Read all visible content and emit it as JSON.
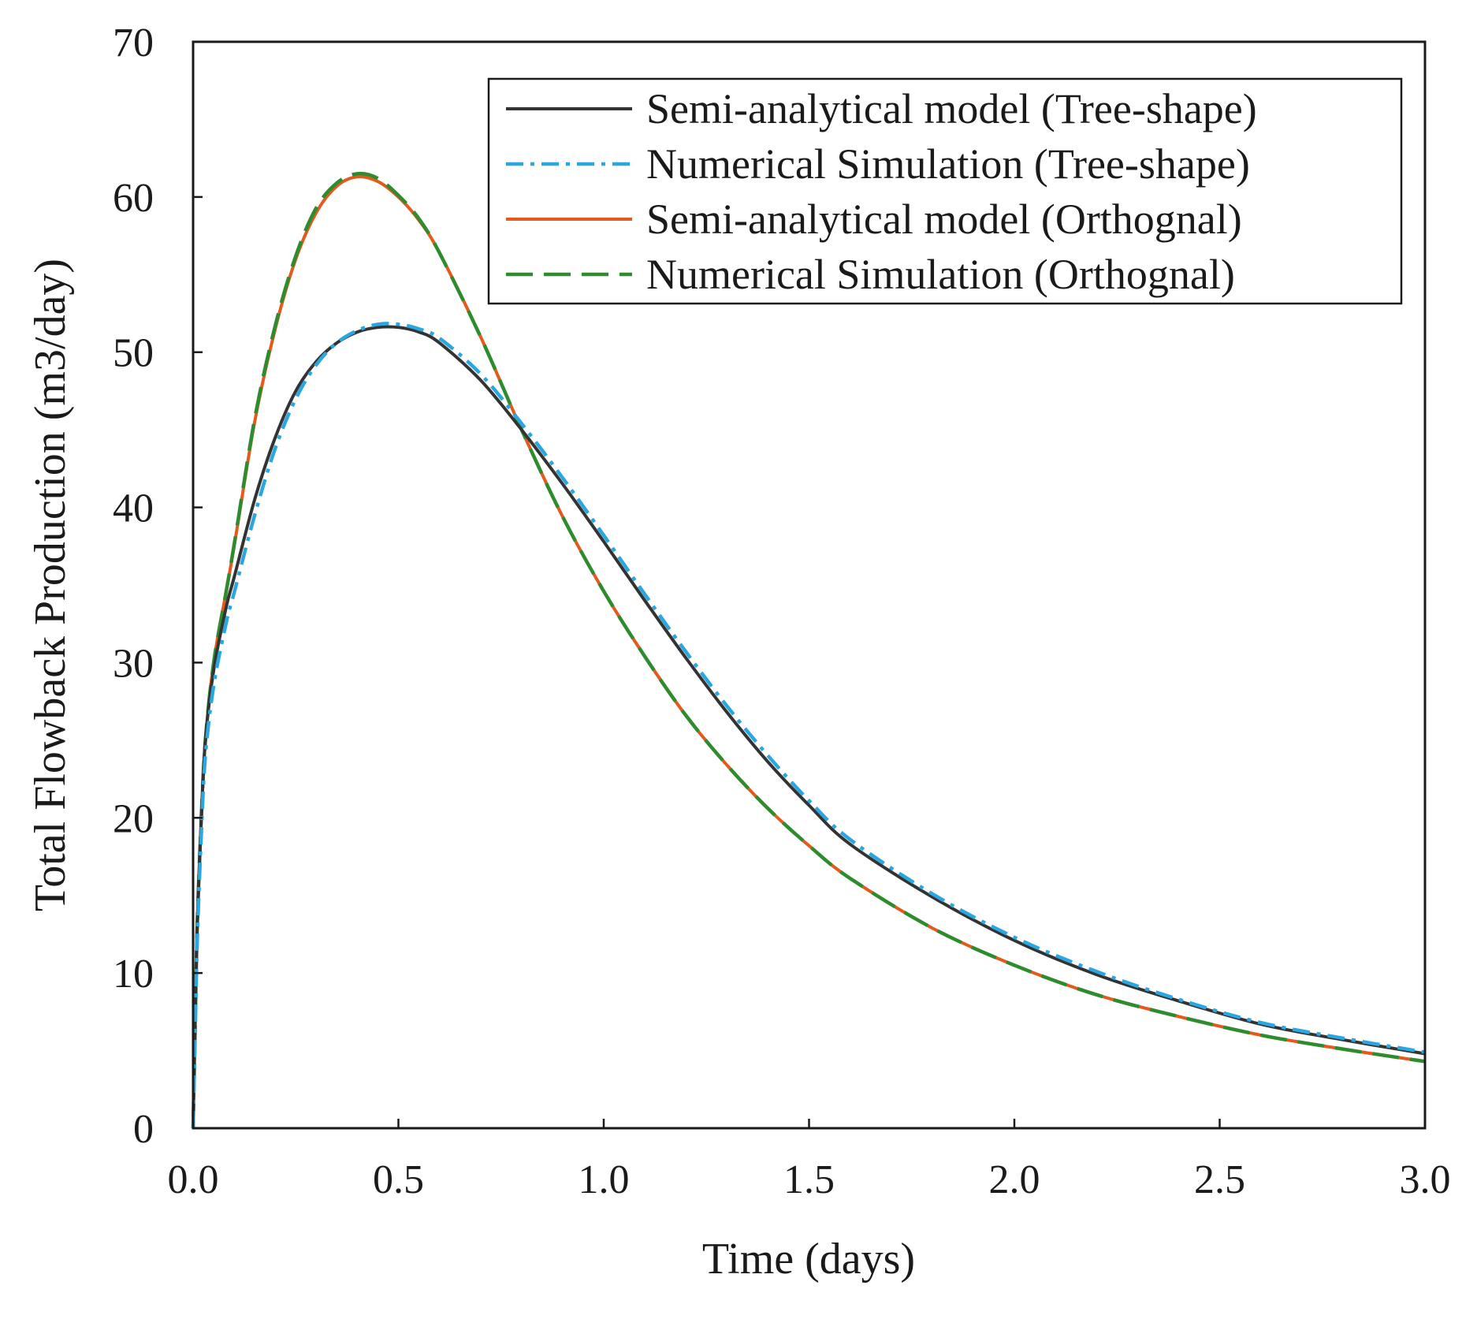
{
  "chart_data": {
    "type": "line",
    "title": "",
    "xlabel": "Time (days)",
    "ylabel": "Total Flowback Production (m3/day)",
    "xlim": [
      0,
      3
    ],
    "ylim": [
      0,
      70
    ],
    "x_ticks": [
      0,
      0.5,
      1,
      1.5,
      2,
      2.5,
      3
    ],
    "x_tick_labels": [
      "0.0",
      "0.5",
      "1.0",
      "1.5",
      "2.0",
      "2.5",
      "3.0"
    ],
    "y_ticks": [
      0,
      10,
      20,
      30,
      40,
      50,
      60,
      70
    ],
    "y_tick_labels": [
      "0",
      "10",
      "20",
      "30",
      "40",
      "50",
      "60",
      "70"
    ],
    "grid": false,
    "legend_position": "top-right",
    "series": [
      {
        "name": "Semi-analytical model (Tree-shape)",
        "color": "#333333",
        "dash": "solid",
        "x": [
          0,
          0.005,
          0.01,
          0.02,
          0.03,
          0.05,
          0.08,
          0.1,
          0.15,
          0.2,
          0.25,
          0.3,
          0.35,
          0.4,
          0.45,
          0.5,
          0.55,
          0.6,
          0.7,
          0.8,
          0.9,
          1.0,
          1.1,
          1.2,
          1.3,
          1.4,
          1.5,
          1.6,
          1.8,
          2.0,
          2.2,
          2.4,
          2.6,
          2.8,
          3.0
        ],
        "y": [
          0,
          7,
          13,
          20,
          25,
          29.5,
          33.5,
          35.5,
          40.5,
          44.5,
          47.5,
          49.4,
          50.6,
          51.3,
          51.6,
          51.6,
          51.3,
          50.6,
          48.2,
          45.0,
          41.5,
          37.8,
          34.0,
          30.3,
          26.8,
          23.6,
          20.8,
          18.3,
          14.9,
          12.1,
          9.9,
          8.2,
          6.7,
          5.7,
          4.8
        ]
      },
      {
        "name": "Numerical Simulation (Tree-shape)",
        "color": "#2aa7e0",
        "dash": "dashdot",
        "x": [
          0,
          0.005,
          0.01,
          0.02,
          0.03,
          0.05,
          0.08,
          0.1,
          0.15,
          0.2,
          0.25,
          0.3,
          0.35,
          0.4,
          0.45,
          0.5,
          0.55,
          0.6,
          0.7,
          0.8,
          0.9,
          1.0,
          1.1,
          1.2,
          1.3,
          1.4,
          1.5,
          1.6,
          1.8,
          2.0,
          2.2,
          2.4,
          2.6,
          2.8,
          3.0
        ],
        "y": [
          0,
          6,
          12,
          19,
          24,
          28.5,
          32.5,
          34.5,
          39.5,
          43.8,
          47.0,
          49.2,
          50.6,
          51.4,
          51.8,
          51.8,
          51.5,
          50.9,
          48.6,
          45.4,
          41.9,
          38.2,
          34.4,
          30.7,
          27.2,
          24.0,
          21.1,
          18.6,
          15.1,
          12.3,
          10.1,
          8.3,
          6.8,
          5.8,
          4.9
        ]
      },
      {
        "name": "Semi-analytical model (Orthognal)",
        "color": "#e35a1c",
        "dash": "solid",
        "x": [
          0,
          0.005,
          0.01,
          0.02,
          0.03,
          0.05,
          0.08,
          0.1,
          0.15,
          0.2,
          0.25,
          0.3,
          0.35,
          0.4,
          0.45,
          0.5,
          0.55,
          0.6,
          0.7,
          0.8,
          0.9,
          1.0,
          1.1,
          1.2,
          1.3,
          1.4,
          1.5,
          1.6,
          1.8,
          2.0,
          2.2,
          2.4,
          2.6,
          2.8,
          3.0
        ],
        "y": [
          0,
          6.5,
          13,
          20,
          25,
          30,
          34.5,
          37.5,
          45.5,
          51.5,
          56.0,
          59.0,
          60.7,
          61.3,
          61.0,
          60.0,
          58.5,
          56.4,
          51.0,
          45.0,
          39.4,
          34.6,
          30.4,
          26.6,
          23.4,
          20.6,
          18.2,
          16.1,
          12.9,
          10.5,
          8.6,
          7.2,
          6.0,
          5.1,
          4.3
        ]
      },
      {
        "name": "Numerical Simulation (Orthognal)",
        "color": "#2e8b2e",
        "dash": "longdash",
        "x": [
          0,
          0.005,
          0.01,
          0.02,
          0.03,
          0.05,
          0.08,
          0.1,
          0.15,
          0.2,
          0.25,
          0.3,
          0.35,
          0.4,
          0.45,
          0.5,
          0.55,
          0.6,
          0.7,
          0.8,
          0.9,
          1.0,
          1.1,
          1.2,
          1.3,
          1.4,
          1.5,
          1.6,
          1.8,
          2.0,
          2.2,
          2.4,
          2.6,
          2.8,
          3.0
        ],
        "y": [
          0,
          6.5,
          13,
          20,
          25,
          30,
          34.5,
          37.6,
          45.7,
          51.7,
          56.2,
          59.3,
          60.9,
          61.5,
          61.2,
          60.1,
          58.6,
          56.4,
          51.0,
          45.0,
          39.4,
          34.6,
          30.4,
          26.6,
          23.4,
          20.6,
          18.2,
          16.1,
          12.9,
          10.5,
          8.6,
          7.2,
          6.0,
          5.1,
          4.3
        ]
      }
    ]
  }
}
